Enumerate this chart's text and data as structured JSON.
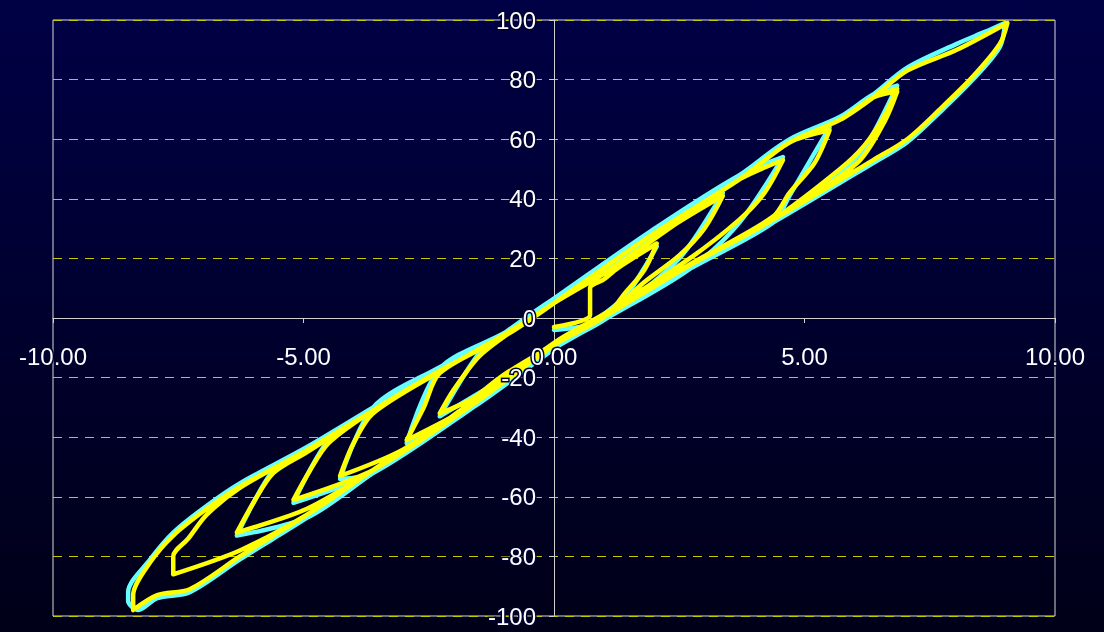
{
  "chart_data": {
    "type": "line",
    "xlim": [
      -10,
      10
    ],
    "xticks": [
      {
        "value": -10,
        "label": "-10.00"
      },
      {
        "value": -5,
        "label": "-5.00"
      },
      {
        "value": 0,
        "label": "0.00"
      },
      {
        "value": 5,
        "label": "5.00"
      },
      {
        "value": 10,
        "label": "10.00"
      }
    ],
    "ylim": [
      -100,
      100
    ],
    "yticks": [
      -100,
      -80,
      -60,
      -40,
      -20,
      0,
      20,
      40,
      60,
      80,
      100
    ],
    "grid": "y",
    "series": [
      {
        "color": "#66ffff",
        "x": [
          0,
          1.06,
          2.05,
          1.4,
          0.12,
          -1.08,
          -2.28,
          -1.5,
          -0.94,
          0,
          1.06,
          2.38,
          3.37,
          2.5,
          1.06,
          0.12,
          -1.62,
          -2.94,
          -2.28,
          -0.94,
          0,
          1.92,
          3.71,
          4.57,
          3.7,
          2.71,
          1.06,
          0.12,
          -1.62,
          -3.61,
          -4.27,
          -3.61,
          -2.28,
          -0.94,
          0,
          1.92,
          3.71,
          4.71,
          5.5,
          4.7,
          4.37,
          2.71,
          1.06,
          0.12,
          -1.62,
          -3.61,
          -5.2,
          -4.5,
          -3.61,
          -2.28,
          -0.94,
          0,
          1.92,
          3.71,
          4.71,
          5.71,
          6.37,
          6.85,
          6.2,
          5.71,
          4.37,
          2.71,
          1.06,
          0.12,
          -1.62,
          -3.61,
          -4.93,
          -6.33,
          -5.6,
          -4.93,
          -3.61,
          -2.28,
          -0.94,
          0,
          1.92,
          3.71,
          4.71,
          5.71,
          6.37,
          7.05,
          8.04,
          8.6,
          9.0,
          8.9,
          8.36,
          7.7,
          7.05,
          6.37,
          4.37,
          2.71,
          1.06,
          0.12,
          -1.08,
          -1.62,
          -3.61,
          -4.93,
          -5.6,
          -6.27,
          -7.27,
          -7.92,
          -8.3,
          -8.5,
          -8.5,
          -8.06,
          -7.6,
          -6.93,
          -6.27,
          -4.93,
          -3.61,
          -2.28,
          -0.94,
          0
        ],
        "values": [
          -4,
          0,
          24,
          7,
          -9,
          -21,
          -33,
          -12,
          -4.5,
          6.5,
          17,
          32,
          42,
          20,
          0,
          -9,
          -30,
          -42,
          -17,
          -4.5,
          6.5,
          29,
          48,
          54,
          32,
          16.5,
          0,
          -9,
          -30,
          -52,
          -54,
          -30,
          -16.5,
          -4.5,
          6.5,
          29,
          48,
          60,
          64,
          41,
          32,
          16.5,
          0,
          -9,
          -30,
          -52,
          -62,
          -41,
          -30,
          -16.5,
          -4.5,
          6.5,
          29,
          48,
          60,
          67.5,
          75,
          78,
          57,
          49,
          32,
          16.5,
          0,
          -9,
          -30,
          -52,
          -67,
          -73,
          -51,
          -43.5,
          -30,
          -16.5,
          -4.5,
          6.5,
          29,
          48,
          60,
          67.5,
          75,
          84,
          92,
          96,
          99,
          91,
          80,
          69,
          59,
          52,
          32,
          16.5,
          0,
          -9,
          -21,
          -30,
          -52,
          -67,
          -74,
          -81,
          -92,
          -94,
          -98,
          -95,
          -92,
          -81,
          -72,
          -63,
          -55.5,
          -43.3,
          -30,
          -16.5,
          -4.5,
          6.5
        ]
      },
      {
        "color": "#ffff00",
        "x": [
          0,
          0.72,
          0.72,
          1.0,
          1.26,
          2.05,
          1.8,
          1.4,
          1.06,
          0.12,
          -1.08,
          -1.62,
          -2.28,
          -2.0,
          -1.5,
          -0.94,
          0,
          1.06,
          2.38,
          3.37,
          3.0,
          2.5,
          1.8,
          1.06,
          0.12,
          -1.08,
          -1.62,
          -2.94,
          -2.6,
          -2.28,
          -0.94,
          0,
          1.06,
          2.38,
          3.71,
          4.57,
          4.2,
          3.7,
          2.71,
          1.06,
          0.12,
          -1.62,
          -3.0,
          -4.27,
          -4.0,
          -3.61,
          -2.28,
          -0.94,
          0,
          1.92,
          3.71,
          4.71,
          5.5,
          5.2,
          4.7,
          4.37,
          2.71,
          1.06,
          0.12,
          -1.62,
          -3.61,
          -5.2,
          -4.9,
          -4.5,
          -3.61,
          -2.28,
          -0.94,
          0,
          1.92,
          3.71,
          4.71,
          5.71,
          6.37,
          6.85,
          6.6,
          6.2,
          5.71,
          4.37,
          2.71,
          1.06,
          0.12,
          -1.62,
          -3.61,
          -4.93,
          -6.33,
          -6.0,
          -5.6,
          -4.93,
          -3.61,
          -2.28,
          -0.94,
          0,
          1.92,
          3.71,
          4.71,
          5.71,
          6.37,
          6.85,
          6.6,
          6.05,
          4.37,
          2.71,
          1.06,
          0.12,
          -1.62,
          -3.61,
          -4.93,
          -6.27,
          -7.6,
          -7.6,
          -7.3,
          -6.93,
          -6.27,
          -4.93,
          -3.61,
          -2.28,
          -0.94,
          0,
          1.92,
          3.71,
          4.71,
          5.71,
          6.37,
          7.05,
          8.04,
          9.05,
          8.9,
          8.36,
          7.7,
          7.05,
          6.37,
          4.37,
          2.71,
          1.06,
          0.12,
          -1.08,
          -1.62,
          -3.61,
          -4.93,
          -5.6,
          -6.27,
          -7.27,
          -7.92,
          -8.4,
          -8.4,
          -8.06,
          -7.6,
          -6.93,
          -6.27,
          -4.93,
          -3.61,
          -2.28,
          -0.94,
          0
        ],
        "values": [
          -3,
          1,
          10,
          13,
          16.6,
          25,
          16,
          8,
          1,
          -7.8,
          -20,
          -27,
          -32,
          -24,
          -13,
          -5.6,
          5,
          15.6,
          31,
          41,
          30,
          21,
          12,
          1,
          -7.8,
          -20,
          -29,
          -41,
          -30,
          -18.5,
          -5.6,
          5,
          15.6,
          31,
          46.6,
          53,
          42,
          33,
          20,
          2,
          -7,
          -28,
          -44,
          -53,
          -42,
          -32,
          -18,
          -5,
          5,
          27.6,
          46.6,
          59,
          63,
          52,
          42,
          34,
          18,
          1.5,
          -7.5,
          -29,
          -51,
          -61,
          -52,
          -42,
          -31,
          -17.7,
          -5.6,
          5,
          27.6,
          46.6,
          59,
          66.5,
          74,
          77,
          68,
          58,
          50,
          33,
          17.7,
          1,
          -7.8,
          -29,
          -51,
          -64,
          -72,
          -62,
          -52,
          -45,
          -31,
          -17.7,
          -5.6,
          5,
          27.6,
          46.6,
          59,
          66.5,
          74,
          76,
          66,
          52,
          33,
          17.7,
          1,
          -7.8,
          -29,
          -51,
          -66,
          -78,
          -86,
          -80,
          -74,
          -66,
          -57,
          -44.3,
          -31,
          -17.7,
          -5.6,
          5,
          27.6,
          46.6,
          59,
          66.5,
          74,
          83,
          90,
          99,
          92,
          81,
          70,
          60,
          53,
          33,
          17.7,
          1,
          -7.8,
          -20,
          -29,
          -51,
          -66,
          -73,
          -80,
          -91,
          -93,
          -98,
          -93,
          -82,
          -73,
          -64,
          -56.6,
          -44.3,
          -31,
          -17.7,
          -5.6,
          5
        ]
      }
    ]
  }
}
